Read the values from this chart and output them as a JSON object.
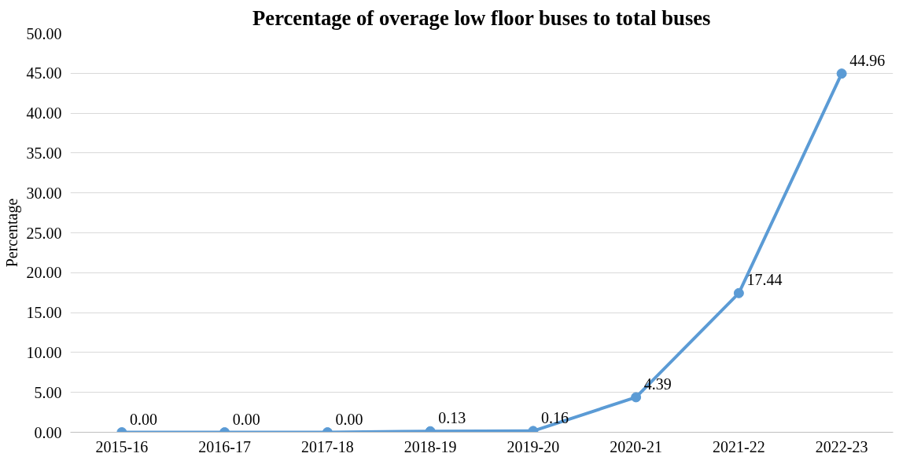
{
  "chart_data": {
    "type": "line",
    "title": "Percentage of overage low floor buses to total buses",
    "ylabel": "Percentage",
    "categories": [
      "2015-16",
      "2016-17",
      "2017-18",
      "2018-19",
      "2019-20",
      "2020-21",
      "2021-22",
      "2022-23"
    ],
    "series": [
      {
        "color": "#5b9bd5",
        "values": [
          0,
          0,
          0,
          0.13,
          0.16,
          4.39,
          17.44,
          44.96
        ]
      }
    ],
    "value_labels": [
      "0.00",
      "0.00",
      "0.00",
      "0.13",
      "0.16",
      "4.39",
      "17.44",
      "44.96"
    ],
    "ylim": [
      0,
      50
    ],
    "yticks": [
      {
        "value": 0,
        "label": "0.00"
      },
      {
        "value": 5,
        "label": "5.00"
      },
      {
        "value": 10,
        "label": "10.00"
      },
      {
        "value": 15,
        "label": "15.00"
      },
      {
        "value": 20,
        "label": "20.00"
      },
      {
        "value": 25,
        "label": "25.00"
      },
      {
        "value": 30,
        "label": "30.00"
      },
      {
        "value": 35,
        "label": "35.00"
      },
      {
        "value": 40,
        "label": "40.00"
      },
      {
        "value": 45,
        "label": "45.00"
      },
      {
        "value": 50,
        "label": "50.00"
      }
    ],
    "grid": "y",
    "marker": "circle",
    "line_style": "solid"
  }
}
